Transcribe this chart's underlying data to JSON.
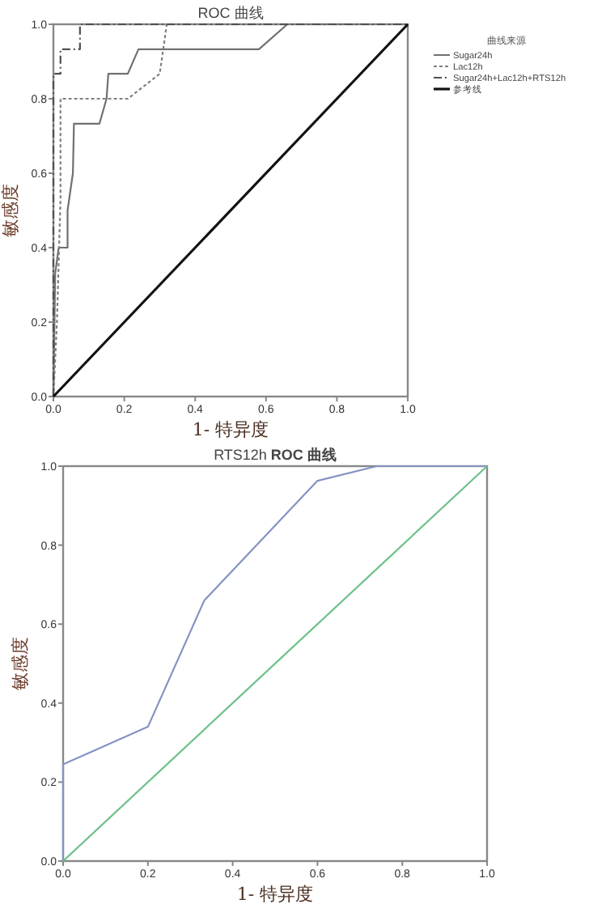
{
  "chart_data": [
    {
      "type": "line",
      "title": "ROC 曲线",
      "xlabel": "1- 特异度",
      "ylabel": "敏感度",
      "legend_title": "曲线来源",
      "legend": "right",
      "grid": false,
      "marker": "none",
      "xlim": [
        0,
        1
      ],
      "ylim": [
        0,
        1
      ],
      "xticks": [
        {
          "value": 0,
          "label": "0.0"
        },
        {
          "value": 0.2,
          "label": "0.2"
        },
        {
          "value": 0.4,
          "label": "0.4"
        },
        {
          "value": 0.6,
          "label": "0.6"
        },
        {
          "value": 0.8,
          "label": "0.8"
        },
        {
          "value": 1,
          "label": "1.0"
        }
      ],
      "yticks": [
        {
          "value": 0,
          "label": "0.0"
        },
        {
          "value": 0.2,
          "label": "0.2"
        },
        {
          "value": 0.4,
          "label": "0.4"
        },
        {
          "value": 0.6,
          "label": "0.6"
        },
        {
          "value": 0.8,
          "label": "0.8"
        },
        {
          "value": 1,
          "label": "1.0"
        }
      ],
      "series": [
        {
          "name": "Sugar24h",
          "color": "#707070",
          "line_style": "solid",
          "x": [
            0,
            0.005,
            0.015,
            0.04,
            0.04,
            0.055,
            0.058,
            0.13,
            0.15,
            0.155,
            0.21,
            0.24,
            0.58,
            0.66,
            1
          ],
          "values": [
            0,
            0.33,
            0.4,
            0.4,
            0.5,
            0.6,
            0.733,
            0.733,
            0.8,
            0.867,
            0.867,
            0.933,
            0.933,
            1,
            1
          ]
        },
        {
          "name": "Lac12h",
          "color": "#808080",
          "line_style": "dotted",
          "x": [
            0,
            0.01,
            0.02,
            0.02,
            0.21,
            0.3,
            0.32,
            1
          ],
          "values": [
            0,
            0.2,
            0.53,
            0.8,
            0.8,
            0.867,
            1,
            1
          ]
        },
        {
          "name": "Sugar24h+Lac12h+RTS12h",
          "color": "#505050",
          "line_style": "dashed",
          "x": [
            0,
            0,
            0.02,
            0.02,
            0.075,
            0.075,
            1
          ],
          "values": [
            0,
            0.867,
            0.867,
            0.933,
            0.933,
            1,
            1
          ]
        },
        {
          "name": "参考线",
          "color": "#111111",
          "line_style": "solid",
          "x": [
            0,
            1
          ],
          "values": [
            0,
            1
          ]
        }
      ]
    },
    {
      "type": "line",
      "title": "RTS12h **ROC 曲线**",
      "xlabel": "1- 特异度",
      "ylabel": "敏感度",
      "legend": false,
      "grid": false,
      "marker": "none",
      "xlim": [
        0,
        1
      ],
      "ylim": [
        0,
        1
      ],
      "xticks": [
        {
          "value": 0,
          "label": "0.0"
        },
        {
          "value": 0.2,
          "label": "0.2"
        },
        {
          "value": 0.4,
          "label": "0.4"
        },
        {
          "value": 0.6,
          "label": "0.6"
        },
        {
          "value": 0.8,
          "label": "0.8"
        },
        {
          "value": 1,
          "label": "1.0"
        }
      ],
      "yticks": [
        {
          "value": 0,
          "label": "0.0"
        },
        {
          "value": 0.2,
          "label": "0.2"
        },
        {
          "value": 0.4,
          "label": "0.4"
        },
        {
          "value": 0.6,
          "label": "0.6"
        },
        {
          "value": 0.8,
          "label": "0.8"
        },
        {
          "value": 1,
          "label": "1.0"
        }
      ],
      "series": [
        {
          "color": "#8593c4",
          "line_style": "solid",
          "x": [
            0,
            0,
            0.2,
            0.333,
            0.6,
            0.74,
            1
          ],
          "values": [
            0,
            0.245,
            0.34,
            0.66,
            0.963,
            1,
            1
          ]
        },
        {
          "color": "#6cc08a",
          "line_style": "solid",
          "x": [
            0,
            1
          ],
          "values": [
            0,
            1
          ]
        }
      ]
    }
  ]
}
